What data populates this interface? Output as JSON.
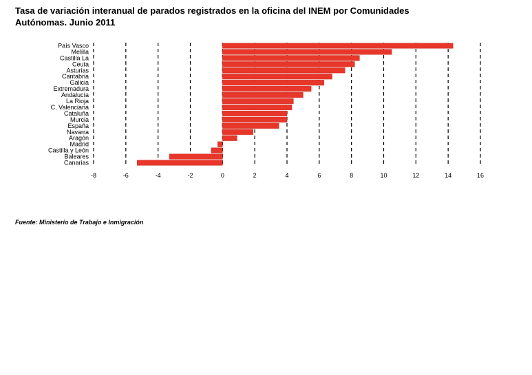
{
  "chart_data": {
    "type": "bar",
    "orientation": "horizontal",
    "title_line1": "Tasa de variación interanual de parados registrados en la oficina del INEM por Comunidades",
    "title_line2": "Autónomas. Junio 2011",
    "source": "Fuente: Ministerio de Trabajo e Inmigración",
    "categories": [
      "País Vasco",
      "Melilla",
      "Castilla La",
      "Ceuta",
      "Asturias",
      "Cantabria",
      "Galicia",
      "Extremadura",
      "Andalucía",
      "La Rioja",
      "C. Valenciana",
      "Cataluña",
      "Murcia",
      "España",
      "Navarra",
      "Aragón",
      "Madrid",
      "Castilla y León",
      "Baleares",
      "Canarias"
    ],
    "values": [
      14.3,
      10.5,
      8.5,
      8.2,
      7.6,
      6.8,
      6.3,
      5.5,
      5.0,
      4.4,
      4.3,
      4.0,
      4.0,
      3.5,
      1.9,
      0.9,
      -0.3,
      -0.7,
      -3.3,
      -5.3
    ],
    "xlim": [
      -8,
      16
    ],
    "xticks": [
      "-8",
      "-6",
      "-4",
      "-2",
      "0",
      "2",
      "4",
      "6",
      "8",
      "10",
      "12",
      "14",
      "16"
    ],
    "bar_color": "#e8362a",
    "grid": "vertical dashed"
  }
}
